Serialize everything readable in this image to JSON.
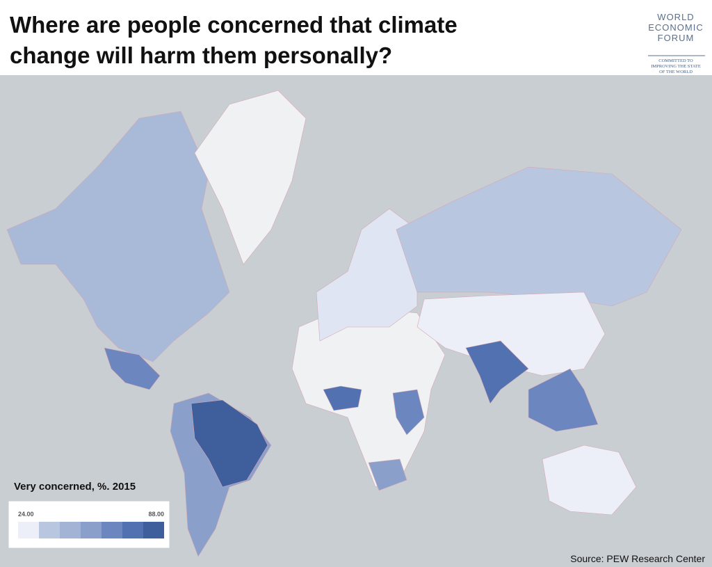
{
  "header": {
    "title": [
      "Where are people concerned that climate",
      "change will harm them personally?"
    ],
    "logo": [
      "WORLD",
      "ECONOMIC",
      "FORUM",
      "COMMITTED TO",
      "IMPROVING THE STATE",
      "OF THE WORLD"
    ]
  },
  "legend": {
    "title": "Very concerned, %. 2015",
    "min": {
      "value": 24,
      "label": "24.00"
    },
    "max": {
      "value": 88,
      "label": "88.00"
    },
    "colors": [
      "#eceff7",
      "#b8c6e0",
      "#a2b3d6",
      "#8aa0cb",
      "#6c86bf",
      "#5271b0",
      "#3f5e9c"
    ]
  },
  "source": "Source: PEW Research Center"
}
